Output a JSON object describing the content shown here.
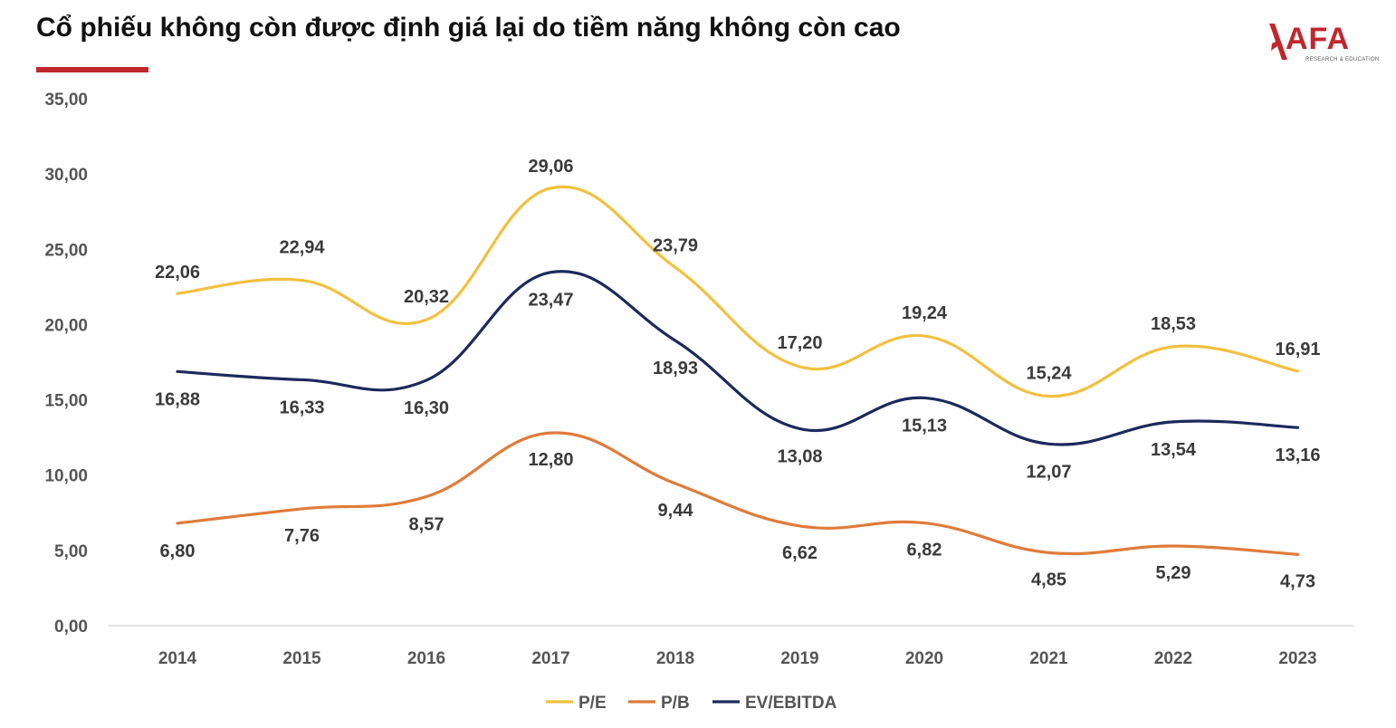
{
  "header": {
    "title": "Cổ phiếu không còn được định giá lại do tiềm năng không còn cao",
    "accent_color": "#c0272d"
  },
  "logo": {
    "text": "AFA",
    "subtext": "RESEARCH & EDUCATION",
    "icon": "afa-logo-icon"
  },
  "chart_data": {
    "type": "line",
    "title": "Cổ phiếu không còn được định giá lại do tiềm năng không còn cao",
    "xlabel": "",
    "ylabel": "",
    "categories": [
      "2014",
      "2015",
      "2016",
      "2017",
      "2018",
      "2019",
      "2020",
      "2021",
      "2022",
      "2023"
    ],
    "ylim": [
      0,
      35
    ],
    "yticks": [
      0,
      5,
      10,
      15,
      20,
      25,
      30,
      35
    ],
    "ytick_labels": [
      "0,00",
      "5,00",
      "10,00",
      "15,00",
      "20,00",
      "25,00",
      "30,00",
      "35,00"
    ],
    "grid": false,
    "legend_position": "bottom",
    "series": [
      {
        "name": "P/E",
        "color": "#f2c03f",
        "values": [
          22.06,
          22.94,
          20.32,
          29.06,
          23.79,
          17.2,
          19.24,
          15.24,
          18.53,
          16.91
        ],
        "labels": [
          "22,06",
          "22,94",
          "20,32",
          "29,06",
          "23,79",
          "17,20",
          "19,24",
          "15,24",
          "18,53",
          "16,91"
        ]
      },
      {
        "name": "P/B",
        "color": "#e07b3a",
        "values": [
          6.8,
          7.76,
          8.57,
          12.8,
          9.44,
          6.62,
          6.82,
          4.85,
          5.29,
          4.73
        ],
        "labels": [
          "6,80",
          "7,76",
          "8,57",
          "12,80",
          "9,44",
          "6,62",
          "6,82",
          "4,85",
          "5,29",
          "4,73"
        ]
      },
      {
        "name": "EV/EBITDA",
        "color": "#1b2a5c",
        "values": [
          16.88,
          16.33,
          16.3,
          23.47,
          18.93,
          13.08,
          15.13,
          12.07,
          13.54,
          13.16
        ],
        "labels": [
          "16,88",
          "16,33",
          "16,30",
          "23,47",
          "18,93",
          "13,08",
          "15,13",
          "12,07",
          "13,54",
          "13,16"
        ]
      }
    ]
  }
}
